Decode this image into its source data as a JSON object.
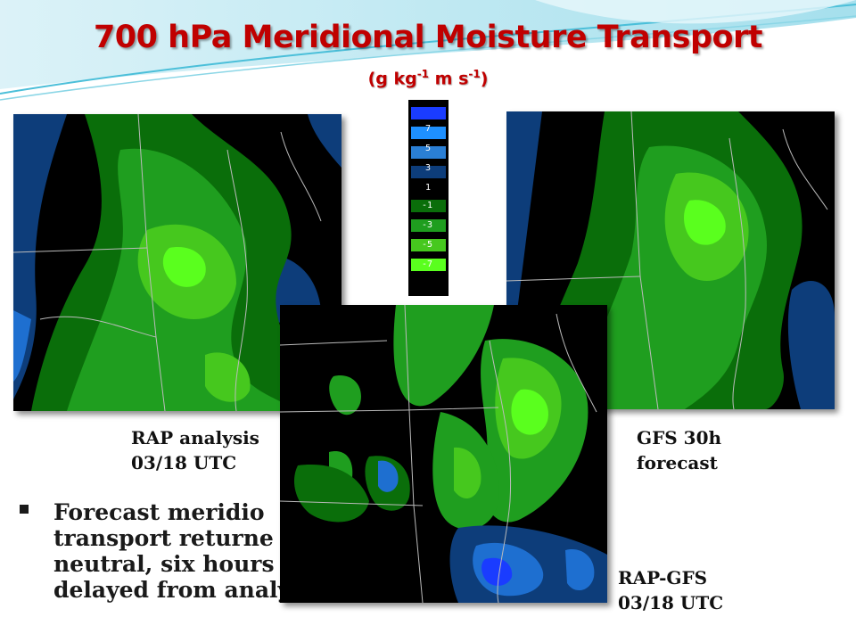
{
  "title": "700 hPa Meridional Moisture Transport",
  "subtitle_prefix": "(g kg",
  "subtitle_exp1": "-1",
  "subtitle_mid": " m s",
  "subtitle_exp2": "-1",
  "subtitle_suffix": ")",
  "legend": {
    "labels": [
      "7",
      "5",
      "3",
      "1",
      "-1",
      "-3",
      "-5",
      "-7"
    ],
    "colors": [
      "#1a3cff",
      "#1e90ff",
      "#2a7fd4",
      "#0d3d7a",
      "#0a6e0a",
      "#1f9e1f",
      "#46c81e",
      "#5aff1e"
    ]
  },
  "panels": {
    "rap": {
      "caption_line1": "RAP analysis",
      "caption_line2": "03/18 UTC"
    },
    "gfs": {
      "caption_line1": "GFS 30h",
      "caption_line2": "forecast"
    },
    "diff": {
      "caption_line1": "RAP-GFS",
      "caption_line2": "03/18 UTC"
    }
  },
  "bullet": {
    "line1": "Forecast meridio",
    "line2": "transport returne",
    "line3": "neutral, six hours",
    "line4": "delayed from analysis"
  },
  "colors": {
    "title": "#c00000",
    "accent": "#2ab7d8"
  }
}
